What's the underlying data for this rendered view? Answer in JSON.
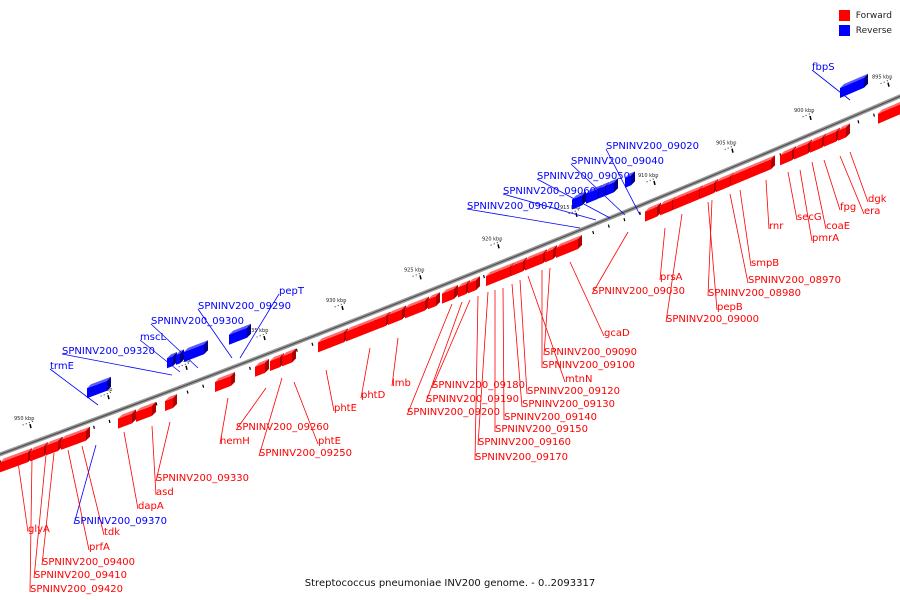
{
  "legend": {
    "forward_label": "Forward",
    "reverse_label": "Reverse",
    "forward_color": "#ff0000",
    "reverse_color": "#0000ff"
  },
  "caption": "Streptococcus pneumoniae INV200 genome. - 0..2093317",
  "scale_ticks": [
    {
      "kbp": 895,
      "label": "895 kbp"
    },
    {
      "kbp": 900,
      "label": "900 kbp"
    },
    {
      "kbp": 905,
      "label": "905 kbp"
    },
    {
      "kbp": 910,
      "label": "910 kbp"
    },
    {
      "kbp": 915,
      "label": "915 kbp"
    },
    {
      "kbp": 920,
      "label": "920 kbp"
    },
    {
      "kbp": 925,
      "label": "925 kbp"
    },
    {
      "kbp": 930,
      "label": "930 kbp"
    },
    {
      "kbp": 935,
      "label": "935 kbp"
    },
    {
      "kbp": 940,
      "label": "940 kbp"
    },
    {
      "kbp": 945,
      "label": "945 kbp"
    },
    {
      "kbp": 950,
      "label": "950 kbp"
    }
  ],
  "reverse_genes": [
    "fbpS",
    "SPNINV200_09020",
    "SPNINV200_09040",
    "SPNINV200_09050",
    "SPNINV200_09060",
    "SPNINV200_09070",
    "pepT",
    "SPNINV200_09290",
    "SPNINV200_09300",
    "mscL",
    "SPNINV200_09320",
    "trmE",
    "SPNINV200_09370"
  ],
  "forward_genes": [
    "dgk",
    "era",
    "fpg",
    "coaE",
    "pmrA",
    "secG",
    "rnr",
    "smpB",
    "SPNINV200_08970",
    "SPNINV200_08980",
    "pepB",
    "SPNINV200_09000",
    "prsA",
    "SPNINV200_09030",
    "gcaD",
    "SPNINV200_09090",
    "SPNINV200_09100",
    "mtnN",
    "SPNINV200_09120",
    "SPNINV200_09130",
    "SPNINV200_09140",
    "SPNINV200_09150",
    "SPNINV200_09160",
    "SPNINV200_09170",
    "SPNINV200_09180",
    "SPNINV200_09190",
    "SPNINV200_09200",
    "lmb",
    "phtD",
    "phtE",
    "phtE",
    "SPNINV200_09250",
    "SPNINV200_09260",
    "hemH",
    "SPNINV200_09330",
    "asd",
    "dapA",
    "tdk",
    "prfA",
    "SPNINV200_09400",
    "SPNINV200_09410",
    "SPNINV200_09420",
    "glyA"
  ]
}
